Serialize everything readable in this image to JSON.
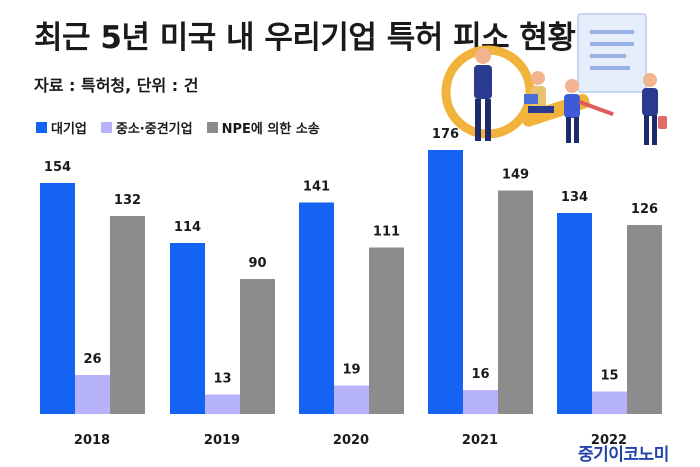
{
  "title": "최근 5년 미국 내 우리기업 특허 피소 현황",
  "source": "자료 : 특허청, 단위 : 건",
  "brand": "중기이코노미",
  "colors": {
    "large": "#1463f2",
    "sme": "#b7b3fb",
    "npe": "#8c8c8c"
  },
  "chart_data": {
    "type": "bar",
    "title": "최근 5년 미국 내 우리기업 특허 피소 현황",
    "unit": "건",
    "categories": [
      "2018",
      "2019",
      "2020",
      "2021",
      "2022"
    ],
    "series": [
      {
        "name": "대기업",
        "values": [
          154,
          114,
          141,
          176,
          134
        ]
      },
      {
        "name": "중소·중견기업",
        "values": [
          26,
          13,
          19,
          16,
          15
        ]
      },
      {
        "name": "NPE에 의한 소송",
        "values": [
          132,
          90,
          111,
          149,
          126
        ]
      }
    ],
    "ylim": [
      0,
      176
    ],
    "grid": false,
    "legend": "top-left"
  }
}
